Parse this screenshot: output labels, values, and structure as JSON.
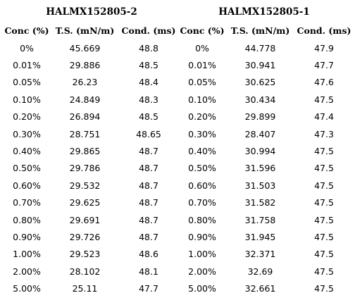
{
  "groups": [
    {
      "title": "HALMX152805-2"
    },
    {
      "title": "HALMX152805-1"
    }
  ],
  "headers": {
    "conc": "Conc (%)",
    "ts": "T.S. (mN/m)",
    "cond": "Cond. (ms)"
  },
  "rows": [
    {
      "a": [
        "0%",
        "45.669",
        "48.8"
      ],
      "b": [
        "0%",
        "44.778",
        "47.9"
      ]
    },
    {
      "a": [
        "0.01%",
        "29.886",
        "48.5"
      ],
      "b": [
        "0.01%",
        "30.941",
        "47.7"
      ]
    },
    {
      "a": [
        "0.05%",
        "26.23",
        "48.4"
      ],
      "b": [
        "0.05%",
        "30.625",
        "47.6"
      ]
    },
    {
      "a": [
        "0.10%",
        "24.849",
        "48.3"
      ],
      "b": [
        "0.10%",
        "30.434",
        "47.5"
      ]
    },
    {
      "a": [
        "0.20%",
        "26.894",
        "48.5"
      ],
      "b": [
        "0.20%",
        "29.899",
        "47.4"
      ]
    },
    {
      "a": [
        "0.30%",
        "28.751",
        "48.65"
      ],
      "b": [
        "0.30%",
        "28.407",
        "47.3"
      ]
    },
    {
      "a": [
        "0.40%",
        "29.865",
        "48.7"
      ],
      "b": [
        "0.40%",
        "30.994",
        "47.5"
      ]
    },
    {
      "a": [
        "0.50%",
        "29.786",
        "48.7"
      ],
      "b": [
        "0.50%",
        "31.596",
        "47.5"
      ]
    },
    {
      "a": [
        "0.60%",
        "29.532",
        "48.7"
      ],
      "b": [
        "0.60%",
        "31.503",
        "47.5"
      ]
    },
    {
      "a": [
        "0.70%",
        "29.625",
        "48.7"
      ],
      "b": [
        "0.70%",
        "31.582",
        "47.5"
      ]
    },
    {
      "a": [
        "0.80%",
        "29.691",
        "48.7"
      ],
      "b": [
        "0.80%",
        "31.758",
        "47.5"
      ]
    },
    {
      "a": [
        "0.90%",
        "29.726",
        "48.7"
      ],
      "b": [
        "0.90%",
        "31.945",
        "47.5"
      ]
    },
    {
      "a": [
        "1.00%",
        "29.523",
        "48.6"
      ],
      "b": [
        "1.00%",
        "32.371",
        "47.5"
      ]
    },
    {
      "a": [
        "2.00%",
        "28.102",
        "48.1"
      ],
      "b": [
        "2.00%",
        "32.69",
        "47.5"
      ]
    },
    {
      "a": [
        "5.00%",
        "25.11",
        "47.7"
      ],
      "b": [
        "5.00%",
        "32.661",
        "47.5"
      ]
    }
  ]
}
